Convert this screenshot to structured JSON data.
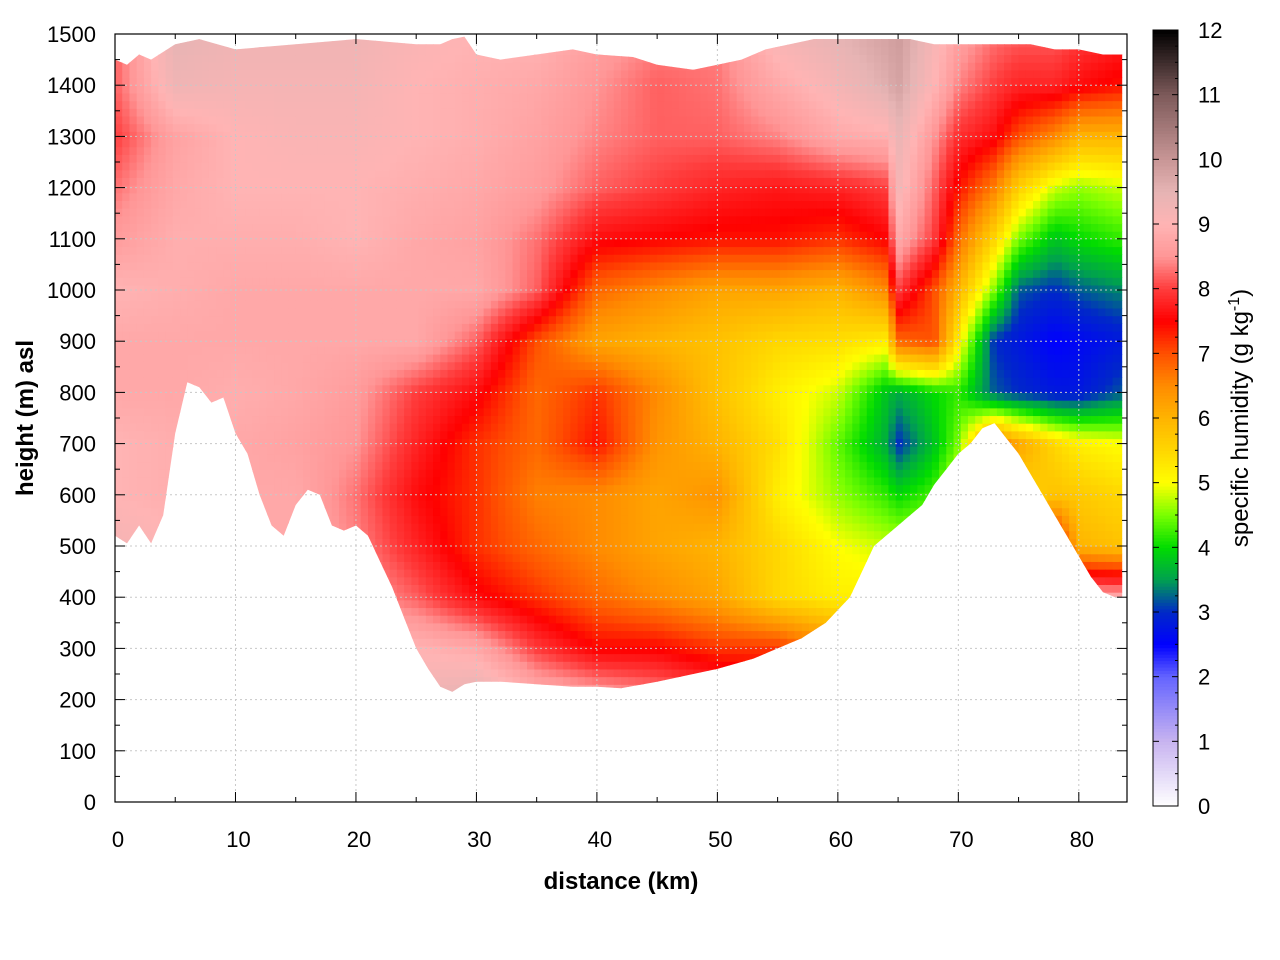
{
  "chart_data": {
    "type": "heatmap",
    "xlabel": "distance (km)",
    "ylabel": "height (m) asl",
    "colorbar_label_main": "specific humidity (g kg",
    "colorbar_label_exp": "-1",
    "colorbar_label_close": ")",
    "xlim": [
      0,
      84
    ],
    "ylim": [
      0,
      1500
    ],
    "x_ticks": [
      0,
      10,
      20,
      30,
      40,
      50,
      60,
      70,
      80
    ],
    "x_tick_labels": [
      "0",
      "10",
      "20",
      "30",
      "40",
      "50",
      "60",
      "70",
      "80"
    ],
    "y_ticks": [
      0,
      100,
      200,
      300,
      400,
      500,
      600,
      700,
      800,
      900,
      1000,
      1100,
      1200,
      1300,
      1400,
      1500
    ],
    "y_tick_labels": [
      "0",
      "100",
      "200",
      "300",
      "400",
      "500",
      "600",
      "700",
      "800",
      "900",
      "1000",
      "1100",
      "1200",
      "1300",
      "1400",
      "1500"
    ],
    "colorbar_range": [
      0,
      12
    ],
    "colorbar_ticks": [
      0,
      1,
      2,
      3,
      4,
      5,
      6,
      7,
      8,
      9,
      10,
      11,
      12
    ],
    "colorbar_tick_labels": [
      "0",
      "1",
      "2",
      "3",
      "4",
      "5",
      "6",
      "7",
      "8",
      "9",
      "10",
      "11",
      "12"
    ],
    "colormap": [
      [
        0,
        "#ffffff"
      ],
      [
        1,
        "#c8b4f0"
      ],
      [
        2,
        "#6464ff"
      ],
      [
        2.5,
        "#0000ff"
      ],
      [
        3,
        "#0028c8"
      ],
      [
        3.5,
        "#00a050"
      ],
      [
        4,
        "#00dc00"
      ],
      [
        4.5,
        "#78ff00"
      ],
      [
        5,
        "#ffff00"
      ],
      [
        5.5,
        "#ffd700"
      ],
      [
        6,
        "#ffb400"
      ],
      [
        6.5,
        "#ff8c00"
      ],
      [
        7,
        "#ff5000"
      ],
      [
        7.5,
        "#ff0000"
      ],
      [
        8,
        "#ff3c3c"
      ],
      [
        8.5,
        "#ff9696"
      ],
      [
        9,
        "#ffb4b4"
      ],
      [
        9.5,
        "#e6b4b4"
      ],
      [
        10,
        "#c89696"
      ],
      [
        11,
        "#7d5a5a"
      ],
      [
        12,
        "#000000"
      ]
    ],
    "grid": true,
    "terrain": [
      [
        0,
        520
      ],
      [
        1,
        505
      ],
      [
        2,
        540
      ],
      [
        3,
        505
      ],
      [
        4,
        560
      ],
      [
        5,
        720
      ],
      [
        6,
        820
      ],
      [
        7,
        810
      ],
      [
        8,
        780
      ],
      [
        9,
        790
      ],
      [
        10,
        720
      ],
      [
        11,
        680
      ],
      [
        12,
        600
      ],
      [
        13,
        540
      ],
      [
        14,
        520
      ],
      [
        15,
        580
      ],
      [
        16,
        610
      ],
      [
        17,
        600
      ],
      [
        18,
        540
      ],
      [
        19,
        530
      ],
      [
        20,
        540
      ],
      [
        21,
        520
      ],
      [
        22,
        470
      ],
      [
        23,
        420
      ],
      [
        24,
        360
      ],
      [
        25,
        300
      ],
      [
        26,
        260
      ],
      [
        27,
        225
      ],
      [
        28,
        215
      ],
      [
        29,
        230
      ],
      [
        30,
        235
      ],
      [
        32,
        235
      ],
      [
        35,
        230
      ],
      [
        38,
        225
      ],
      [
        40,
        225
      ],
      [
        42,
        222
      ],
      [
        45,
        235
      ],
      [
        48,
        250
      ],
      [
        50,
        260
      ],
      [
        53,
        280
      ],
      [
        55,
        300
      ],
      [
        57,
        320
      ],
      [
        59,
        350
      ],
      [
        61,
        400
      ],
      [
        62,
        450
      ],
      [
        63,
        500
      ],
      [
        64,
        520
      ],
      [
        65,
        540
      ],
      [
        66,
        560
      ],
      [
        67,
        580
      ],
      [
        68,
        620
      ],
      [
        69,
        650
      ],
      [
        70,
        680
      ],
      [
        71,
        700
      ],
      [
        72,
        730
      ],
      [
        73,
        740
      ],
      [
        74,
        710
      ],
      [
        75,
        680
      ],
      [
        76,
        640
      ],
      [
        77,
        600
      ],
      [
        78,
        560
      ],
      [
        79,
        520
      ],
      [
        80,
        480
      ],
      [
        81,
        440
      ],
      [
        82,
        410
      ],
      [
        83,
        400
      ],
      [
        83.6,
        400
      ]
    ],
    "top_boundary": [
      [
        0,
        1450
      ],
      [
        1,
        1440
      ],
      [
        2,
        1460
      ],
      [
        3,
        1450
      ],
      [
        5,
        1480
      ],
      [
        7,
        1490
      ],
      [
        10,
        1470
      ],
      [
        15,
        1480
      ],
      [
        20,
        1490
      ],
      [
        25,
        1480
      ],
      [
        27,
        1480
      ],
      [
        28,
        1490
      ],
      [
        29,
        1495
      ],
      [
        30,
        1460
      ],
      [
        32,
        1450
      ],
      [
        35,
        1460
      ],
      [
        38,
        1470
      ],
      [
        40,
        1460
      ],
      [
        43,
        1455
      ],
      [
        45,
        1440
      ],
      [
        48,
        1430
      ],
      [
        50,
        1440
      ],
      [
        52,
        1450
      ],
      [
        54,
        1470
      ],
      [
        56,
        1480
      ],
      [
        58,
        1490
      ],
      [
        60,
        1490
      ],
      [
        62,
        1490
      ],
      [
        64,
        1490
      ],
      [
        66,
        1490
      ],
      [
        68,
        1480
      ],
      [
        70,
        1480
      ],
      [
        72,
        1480
      ],
      [
        74,
        1480
      ],
      [
        76,
        1480
      ],
      [
        78,
        1470
      ],
      [
        80,
        1470
      ],
      [
        82,
        1460
      ],
      [
        83.6,
        1460
      ]
    ],
    "humidity_field": {
      "x_nodes": [
        0,
        5,
        10,
        15,
        20,
        25,
        30,
        35,
        40,
        45,
        50,
        55,
        60,
        64,
        65,
        68,
        70,
        73,
        75,
        78,
        80,
        83.6
      ],
      "z_nodes": [
        200,
        300,
        400,
        500,
        600,
        700,
        800,
        900,
        1000,
        1100,
        1200,
        1300,
        1400,
        1500
      ],
      "values_by_height": [
        [
          8.8,
          8.8,
          8.8,
          8.8,
          8.8,
          9.3,
          9.6,
          9.0,
          8.8,
          8.5,
          8.2,
          7.8,
          7.5,
          7.5,
          7.5,
          7.5,
          7.5,
          7.5,
          7.5,
          7.5,
          8.0,
          8.0
        ],
        [
          8.8,
          8.8,
          8.8,
          8.8,
          8.8,
          9.0,
          8.8,
          8.0,
          7.5,
          7.5,
          7.2,
          7.2,
          6.5,
          6.0,
          6.0,
          6.0,
          6.0,
          6.0,
          6.0,
          6.0,
          6.0,
          6.0
        ],
        [
          8.8,
          8.8,
          8.8,
          8.8,
          8.6,
          8.2,
          7.6,
          7.2,
          6.8,
          6.5,
          6.2,
          5.5,
          5.2,
          5.2,
          5.2,
          5.2,
          5.2,
          5.2,
          8.2,
          8.5,
          8.8,
          8.8
        ],
        [
          9.2,
          9.0,
          8.8,
          8.8,
          8.4,
          7.8,
          7.2,
          6.8,
          6.5,
          6.2,
          6.0,
          5.5,
          5.0,
          4.8,
          4.8,
          4.8,
          4.8,
          4.8,
          5.5,
          7.8,
          6.0,
          5.8
        ],
        [
          9.0,
          8.9,
          8.8,
          8.8,
          8.3,
          7.6,
          7.2,
          6.6,
          6.5,
          6.2,
          6.4,
          5.2,
          4.6,
          4.2,
          4.0,
          4.3,
          5.0,
          5.5,
          5.5,
          5.8,
          5.7,
          5.5
        ],
        [
          9.0,
          8.9,
          8.8,
          8.7,
          8.5,
          7.8,
          7.2,
          6.8,
          7.4,
          6.4,
          6.0,
          5.4,
          4.4,
          3.6,
          3.0,
          3.8,
          4.5,
          6.8,
          6.2,
          5.5,
          5.2,
          5.0
        ],
        [
          8.8,
          8.8,
          8.9,
          8.8,
          8.6,
          8.0,
          7.6,
          6.8,
          7.2,
          6.5,
          5.8,
          5.2,
          4.8,
          3.8,
          3.6,
          4.0,
          4.2,
          3.2,
          3.0,
          2.8,
          2.8,
          3.2
        ],
        [
          8.8,
          8.8,
          8.8,
          8.8,
          8.8,
          8.8,
          8.2,
          7.0,
          6.2,
          6.0,
          5.8,
          5.5,
          5.4,
          5.2,
          6.8,
          7.0,
          5.2,
          3.0,
          2.8,
          2.5,
          2.6,
          2.8
        ],
        [
          9.0,
          8.9,
          8.8,
          8.8,
          8.8,
          8.8,
          8.8,
          8.2,
          6.8,
          6.5,
          6.2,
          6.2,
          6.0,
          6.5,
          8.0,
          7.0,
          6.0,
          4.5,
          3.2,
          3.0,
          3.2,
          3.4
        ],
        [
          8.6,
          8.9,
          8.9,
          8.9,
          9.0,
          8.8,
          8.7,
          8.3,
          7.6,
          7.5,
          7.4,
          7.4,
          7.2,
          7.5,
          8.8,
          8.0,
          6.8,
          5.5,
          4.5,
          3.8,
          4.0,
          4.2
        ],
        [
          8.3,
          8.8,
          9.0,
          9.0,
          9.0,
          8.9,
          8.8,
          8.6,
          8.2,
          8.0,
          7.8,
          7.7,
          7.8,
          8.0,
          9.2,
          8.2,
          7.4,
          6.6,
          5.6,
          4.8,
          4.6,
          4.8
        ],
        [
          8.0,
          8.7,
          9.0,
          9.1,
          9.1,
          9.0,
          8.9,
          8.7,
          8.4,
          8.2,
          8.2,
          8.4,
          8.8,
          8.9,
          9.4,
          8.5,
          7.9,
          7.6,
          7.0,
          6.5,
          6.0,
          6.0
        ],
        [
          8.2,
          9.3,
          9.2,
          9.2,
          9.2,
          9.0,
          8.9,
          8.8,
          8.5,
          8.2,
          8.3,
          8.8,
          9.2,
          9.6,
          9.8,
          9.0,
          8.4,
          8.0,
          7.8,
          7.8,
          7.6,
          7.4
        ],
        [
          8.2,
          9.5,
          9.3,
          9.3,
          9.3,
          9.1,
          9.0,
          9.0,
          8.7,
          8.4,
          8.4,
          9.2,
          9.5,
          9.8,
          9.9,
          9.2,
          8.7,
          8.3,
          8.2,
          8.2,
          8.0,
          7.8
        ]
      ]
    }
  }
}
